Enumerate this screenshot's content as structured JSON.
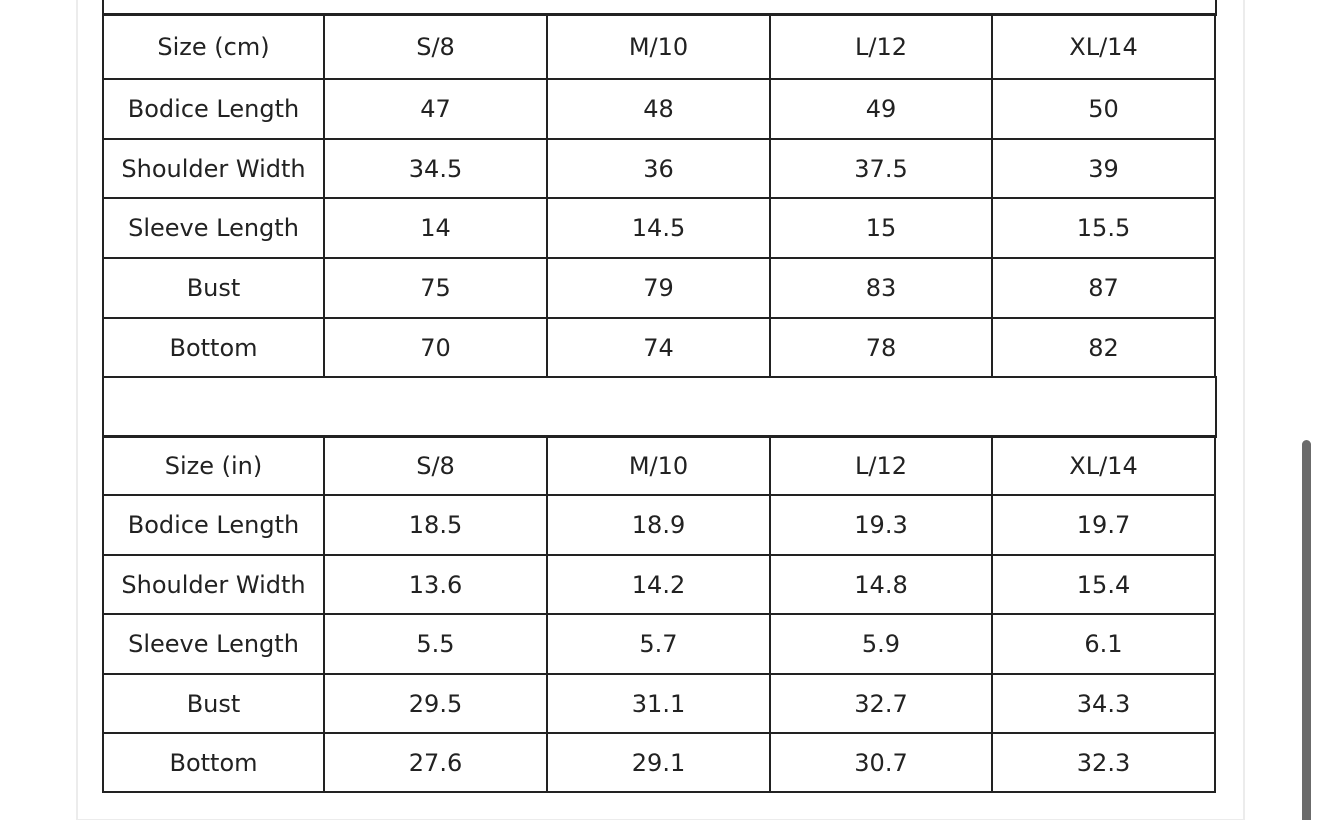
{
  "tables": [
    {
      "header": [
        "Size (cm)",
        "S/8",
        "M/10",
        "L/12",
        "XL/14"
      ],
      "rows": [
        [
          "Bodice Length",
          "47",
          "48",
          "49",
          "50"
        ],
        [
          "Shoulder Width",
          "34.5",
          "36",
          "37.5",
          "39"
        ],
        [
          "Sleeve Length",
          "14",
          "14.5",
          "15",
          "15.5"
        ],
        [
          "Bust",
          "75",
          "79",
          "83",
          "87"
        ],
        [
          "Bottom",
          "70",
          "74",
          "78",
          "82"
        ]
      ]
    },
    {
      "header": [
        "Size (in)",
        "S/8",
        "M/10",
        "L/12",
        "XL/14"
      ],
      "rows": [
        [
          "Bodice Length",
          "18.5",
          "18.9",
          "19.3",
          "19.7"
        ],
        [
          "Shoulder Width",
          "13.6",
          "14.2",
          "14.8",
          "15.4"
        ],
        [
          "Sleeve Length",
          "5.5",
          "5.7",
          "5.9",
          "6.1"
        ],
        [
          "Bust",
          "29.5",
          "31.1",
          "32.7",
          "34.3"
        ],
        [
          "Bottom",
          "27.6",
          "29.1",
          "30.7",
          "32.3"
        ]
      ]
    }
  ]
}
